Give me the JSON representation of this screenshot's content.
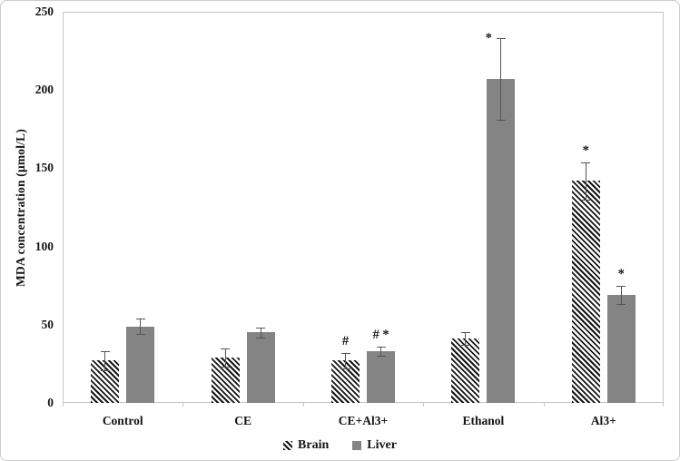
{
  "figure": {
    "y_axis": {
      "title": "MDA concentration (μmol/L)",
      "ticks": [
        0,
        50,
        100,
        150,
        200,
        250
      ]
    },
    "legend": [
      {
        "label": "Brain",
        "swatch": "hatch"
      },
      {
        "label": "Liver",
        "swatch": "solid"
      }
    ],
    "colors": {
      "liver_fill": "#848484",
      "hatch_ink": "#161616",
      "error_bar": "#555555",
      "frame": "#c6c6c6",
      "text": "#141414"
    }
  },
  "chart_data": {
    "type": "bar",
    "categories": [
      "Control",
      "CE",
      "CE+Al3+",
      "Ethanol",
      "Al3+"
    ],
    "series": [
      {
        "name": "Brain",
        "pattern": "hatch",
        "values": [
          27,
          29,
          27,
          41,
          142
        ],
        "errors": [
          6,
          6,
          5,
          4,
          12
        ],
        "annotations": [
          "",
          "",
          "#",
          "",
          "*"
        ],
        "annotation_side": [
          "above",
          "above",
          "above",
          "above",
          "above"
        ]
      },
      {
        "name": "Liver",
        "pattern": "solid",
        "values": [
          49,
          45,
          33,
          207,
          69
        ],
        "errors": [
          5,
          3,
          3,
          26,
          6
        ],
        "annotations": [
          "",
          "",
          "# *",
          "*",
          "*"
        ],
        "annotation_side": [
          "above",
          "above",
          "above",
          "left",
          "above"
        ]
      }
    ],
    "title": "",
    "xlabel": "",
    "ylabel": "MDA concentration (μmol/L)",
    "ylim": [
      0,
      250
    ],
    "grid": false,
    "legend_position": "bottom"
  }
}
